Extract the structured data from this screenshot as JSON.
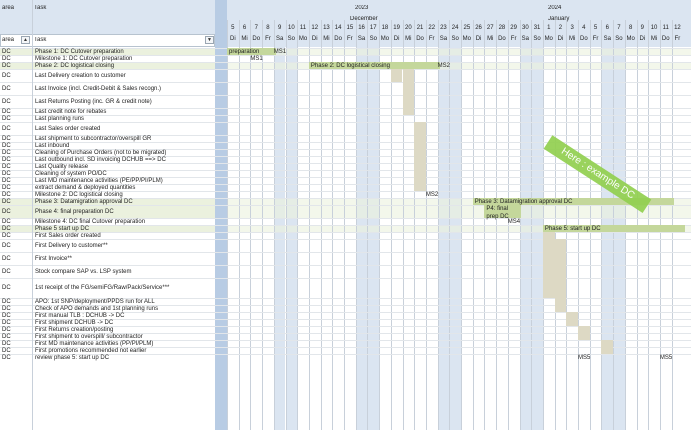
{
  "header": {
    "col_area": "area",
    "col_task": "Task",
    "filter_area": "area",
    "filter_task": "Task",
    "filter_area_icon": "filter-sort-icon",
    "filter_task_icon": "dropdown-arrow-icon"
  },
  "years": [
    {
      "label": "2023"
    },
    {
      "label": "2024"
    }
  ],
  "months": [
    {
      "label": "December"
    },
    {
      "label": "January"
    }
  ],
  "days": [
    {
      "num": "5",
      "name": "Di",
      "weekend": false
    },
    {
      "num": "6",
      "name": "Mi",
      "weekend": false
    },
    {
      "num": "7",
      "name": "Do",
      "weekend": false
    },
    {
      "num": "8",
      "name": "Fr",
      "weekend": false
    },
    {
      "num": "9",
      "name": "Sa",
      "weekend": true
    },
    {
      "num": "10",
      "name": "So",
      "weekend": true
    },
    {
      "num": "11",
      "name": "Mo",
      "weekend": false
    },
    {
      "num": "12",
      "name": "Di",
      "weekend": false
    },
    {
      "num": "13",
      "name": "Mi",
      "weekend": false
    },
    {
      "num": "14",
      "name": "Do",
      "weekend": false
    },
    {
      "num": "15",
      "name": "Fr",
      "weekend": false
    },
    {
      "num": "16",
      "name": "Sa",
      "weekend": true
    },
    {
      "num": "17",
      "name": "So",
      "weekend": true
    },
    {
      "num": "18",
      "name": "Mo",
      "weekend": false
    },
    {
      "num": "19",
      "name": "Di",
      "weekend": false
    },
    {
      "num": "20",
      "name": "Mi",
      "weekend": false
    },
    {
      "num": "21",
      "name": "Do",
      "weekend": false
    },
    {
      "num": "22",
      "name": "Fr",
      "weekend": false
    },
    {
      "num": "23",
      "name": "Sa",
      "weekend": true
    },
    {
      "num": "24",
      "name": "So",
      "weekend": true
    },
    {
      "num": "25",
      "name": "Mo",
      "weekend": false
    },
    {
      "num": "26",
      "name": "Di",
      "weekend": false
    },
    {
      "num": "27",
      "name": "Mi",
      "weekend": false
    },
    {
      "num": "28",
      "name": "Do",
      "weekend": false
    },
    {
      "num": "29",
      "name": "Fr",
      "weekend": false
    },
    {
      "num": "30",
      "name": "Sa",
      "weekend": true
    },
    {
      "num": "31",
      "name": "So",
      "weekend": true
    },
    {
      "num": "1",
      "name": "Mo",
      "weekend": false
    },
    {
      "num": "2",
      "name": "Di",
      "weekend": false
    },
    {
      "num": "3",
      "name": "Mi",
      "weekend": false
    },
    {
      "num": "4",
      "name": "Do",
      "weekend": false
    },
    {
      "num": "5",
      "name": "Fr",
      "weekend": false
    },
    {
      "num": "6",
      "name": "Sa",
      "weekend": true
    },
    {
      "num": "7",
      "name": "So",
      "weekend": true
    },
    {
      "num": "8",
      "name": "Mo",
      "weekend": false
    },
    {
      "num": "9",
      "name": "Di",
      "weekend": false
    },
    {
      "num": "10",
      "name": "Mi",
      "weekend": false
    },
    {
      "num": "11",
      "name": "Do",
      "weekend": false
    },
    {
      "num": "12",
      "name": "Fr",
      "weekend": false
    }
  ],
  "rows": [
    {
      "area": "DC",
      "task": "Phase 1: DC Cutover preparation",
      "hl": true
    },
    {
      "area": "DC",
      "task": "Milestone 1: DC Cutover preparation",
      "hl": false
    },
    {
      "area": "DC",
      "task": "Phase 2: DC logistical closing",
      "hl": true
    },
    {
      "area": "DC",
      "task": "Last Delivery creation to customer",
      "hl": false
    },
    {
      "area": "DC",
      "task": "Last Invoice (incl. Credit-Debit & Sales recogn.)",
      "hl": false
    },
    {
      "area": "DC",
      "task": "Last Returns Posting (inc. GR & credit note)",
      "hl": false
    },
    {
      "area": "DC",
      "task": "Last credit note for rebates",
      "hl": false
    },
    {
      "area": "DC",
      "task": "Last planning runs",
      "hl": false
    },
    {
      "area": "DC",
      "task": "Last Sales order created",
      "hl": false
    },
    {
      "area": "DC",
      "task": "Last shipment to subcontractor/overspill GR",
      "hl": false
    },
    {
      "area": "DC",
      "task": "Last inbound",
      "hl": false
    },
    {
      "area": "DC",
      "task": "Cleaning of Purchase Orders (not to be migrated)",
      "hl": false
    },
    {
      "area": "DC",
      "task": "Last outbound incl. SD invoicing DCHUB ==> DC",
      "hl": false
    },
    {
      "area": "DC",
      "task": "Last Quality release",
      "hl": false
    },
    {
      "area": "DC",
      "task": "Cleaning of system PO/DC",
      "hl": false
    },
    {
      "area": "DC",
      "task": "Last MD maintenance activities (PE/PP/PI/PLM)",
      "hl": false
    },
    {
      "area": "DC",
      "task": "extract demand & deployed quantities",
      "hl": false
    },
    {
      "area": "DC",
      "task": "Milestone 2: DC logistical closing",
      "hl": false
    },
    {
      "area": "DC",
      "task": "Phase 3: Datamigration approval DC",
      "hl": true
    },
    {
      "area": "DC",
      "task": "Phase 4: final preparation DC",
      "hl": true
    },
    {
      "area": "DC",
      "task": "Milestone 4: DC final Cutover preparation",
      "hl": false
    },
    {
      "area": "DC",
      "task": "Phase 5 start up DC",
      "hl": true
    },
    {
      "area": "DC",
      "task": "First Sales order created",
      "hl": false
    },
    {
      "area": "DC",
      "task": "First Delivery to customer**",
      "hl": false
    },
    {
      "area": "DC",
      "task": "First Invoice**",
      "hl": false
    },
    {
      "area": "DC",
      "task": "Stock compare  SAP vs. LSP system",
      "hl": false
    },
    {
      "area": "DC",
      "task": "1st receipt of the FG/semiFG/Raw/Pack/Service***",
      "hl": false
    },
    {
      "area": "DC",
      "task": "APO: 1st SNP/deployment/PPDS run for ALL",
      "hl": false
    },
    {
      "area": "DC",
      "task": "Check of APO demands and 1st planning runs",
      "hl": false
    },
    {
      "area": "DC",
      "task": "First manual TLB : DCHUB -> DC",
      "hl": false
    },
    {
      "area": "DC",
      "task": "First shipment DCHUB -> DC",
      "hl": false
    },
    {
      "area": "DC",
      "task": "First Returns creation/posting",
      "hl": false
    },
    {
      "area": "DC",
      "task": "First shipment to overspill/ subcontractor",
      "hl": false
    },
    {
      "area": "DC",
      "task": "First MD maintenance activities (PP/PI/PLM)",
      "hl": false
    },
    {
      "area": "DC",
      "task": "First promotions recommended not earlier",
      "hl": false
    },
    {
      "area": "DC",
      "task": "review phase 5: start up DC",
      "hl": false
    }
  ],
  "gantt": {
    "bars": [
      {
        "row": 0,
        "start": 0,
        "end": 3,
        "label": "preparation",
        "marker": "MS1"
      },
      {
        "row": 2,
        "start": 7,
        "end": 17,
        "label": "Phase 2: DC logistical closing",
        "marker": "MS2"
      },
      {
        "row": 18,
        "start": 21,
        "end": 37,
        "label": "Phase 3: Datamigration approval DC",
        "marker": ""
      },
      {
        "row": 19,
        "start": 22,
        "end": 24,
        "label": "P4: final prep DC",
        "marker": ""
      },
      {
        "row": 21,
        "start": 27,
        "end": 38,
        "label": "Phase 5: start up DC",
        "marker": ""
      }
    ],
    "milestones": [
      {
        "row": 1,
        "col": 2,
        "label": "MS1"
      },
      {
        "row": 17,
        "col": 17,
        "label": "MS2"
      },
      {
        "row": 20,
        "col": 24,
        "label": "MS4"
      },
      {
        "row": 35,
        "col": 30,
        "label": "MS5"
      },
      {
        "row": 35,
        "col": 37,
        "label": "MS5"
      }
    ],
    "tan_cells": [
      {
        "row": 3,
        "col": 14
      },
      {
        "row": 3,
        "col": 15
      },
      {
        "row": 4,
        "col": 15
      },
      {
        "row": 5,
        "col": 15
      },
      {
        "row": 6,
        "col": 15
      },
      {
        "row": 8,
        "col": 16
      },
      {
        "row": 9,
        "col": 16
      },
      {
        "row": 10,
        "col": 16
      },
      {
        "row": 11,
        "col": 16
      },
      {
        "row": 12,
        "col": 16
      },
      {
        "row": 13,
        "col": 16
      },
      {
        "row": 14,
        "col": 16
      },
      {
        "row": 15,
        "col": 16
      },
      {
        "row": 16,
        "col": 16
      },
      {
        "row": 22,
        "col": 27
      },
      {
        "row": 23,
        "col": 27
      },
      {
        "row": 24,
        "col": 27
      },
      {
        "row": 25,
        "col": 27
      },
      {
        "row": 26,
        "col": 27
      },
      {
        "row": 23,
        "col": 28
      },
      {
        "row": 24,
        "col": 28
      },
      {
        "row": 25,
        "col": 28
      },
      {
        "row": 26,
        "col": 28
      },
      {
        "row": 27,
        "col": 28
      },
      {
        "row": 28,
        "col": 28
      },
      {
        "row": 29,
        "col": 29
      },
      {
        "row": 30,
        "col": 29
      },
      {
        "row": 31,
        "col": 30
      },
      {
        "row": 32,
        "col": 30
      },
      {
        "row": 33,
        "col": 32
      },
      {
        "row": 34,
        "col": 32
      }
    ]
  },
  "stamp": {
    "text": "Here : example DC"
  },
  "colors": {
    "bar": "#c4d79b",
    "tan": "#ddd9c4",
    "weekend": "#dbe5f1",
    "header": "#dbe5f1",
    "highlight": "#ebf1de",
    "stamp": "#92d050"
  }
}
